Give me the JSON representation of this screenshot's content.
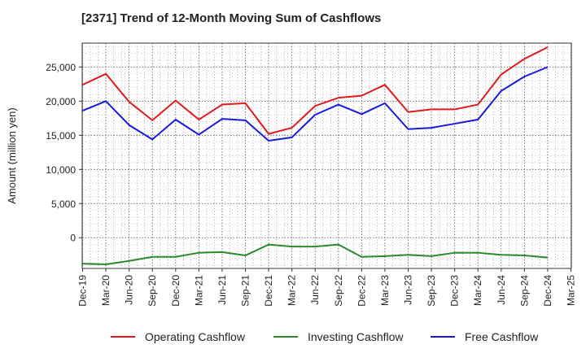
{
  "chart_data": {
    "type": "line",
    "title": "[2371]  Trend of 12-Month Moving Sum of Cashflows",
    "ylabel": "Amount (million yen)",
    "xlabel": "",
    "categories": [
      "Dec-19",
      "Mar-20",
      "Jun-20",
      "Sep-20",
      "Dec-20",
      "Mar-21",
      "Jun-21",
      "Sep-21",
      "Dec-21",
      "Mar-22",
      "Jun-22",
      "Sep-22",
      "Dec-22",
      "Mar-23",
      "Jun-23",
      "Sep-23",
      "Dec-23",
      "Mar-24",
      "Jun-24",
      "Sep-24",
      "Dec-24",
      "Mar-25"
    ],
    "ylim": [
      -4500,
      28500
    ],
    "yticks": [
      0,
      5000,
      10000,
      15000,
      20000,
      25000
    ],
    "ytick_labels": [
      "0",
      "5,000",
      "10,000",
      "15,000",
      "20,000",
      "25,000"
    ],
    "grid": true,
    "legend_position": "bottom",
    "series": [
      {
        "name": "Operating Cashflow",
        "color": "#e31a1c",
        "values": [
          22400,
          24000,
          19900,
          17200,
          20100,
          17300,
          19500,
          19700,
          15200,
          16100,
          19300,
          20500,
          20800,
          22400,
          18400,
          18800,
          18800,
          19500,
          23900,
          26200,
          27900,
          null
        ]
      },
      {
        "name": "Investing Cashflow",
        "color": "#2b8a2b",
        "values": [
          -3800,
          -3900,
          -3400,
          -2800,
          -2800,
          -2200,
          -2100,
          -2600,
          -1000,
          -1300,
          -1300,
          -1000,
          -2800,
          -2700,
          -2500,
          -2700,
          -2200,
          -2200,
          -2500,
          -2600,
          -2900,
          null
        ]
      },
      {
        "name": "Free Cashflow",
        "color": "#1a1adf",
        "values": [
          18600,
          20000,
          16500,
          14400,
          17300,
          15100,
          17400,
          17200,
          14200,
          14700,
          18000,
          19500,
          18100,
          19700,
          15900,
          16100,
          16700,
          17300,
          21500,
          23600,
          25000,
          null
        ]
      }
    ]
  }
}
